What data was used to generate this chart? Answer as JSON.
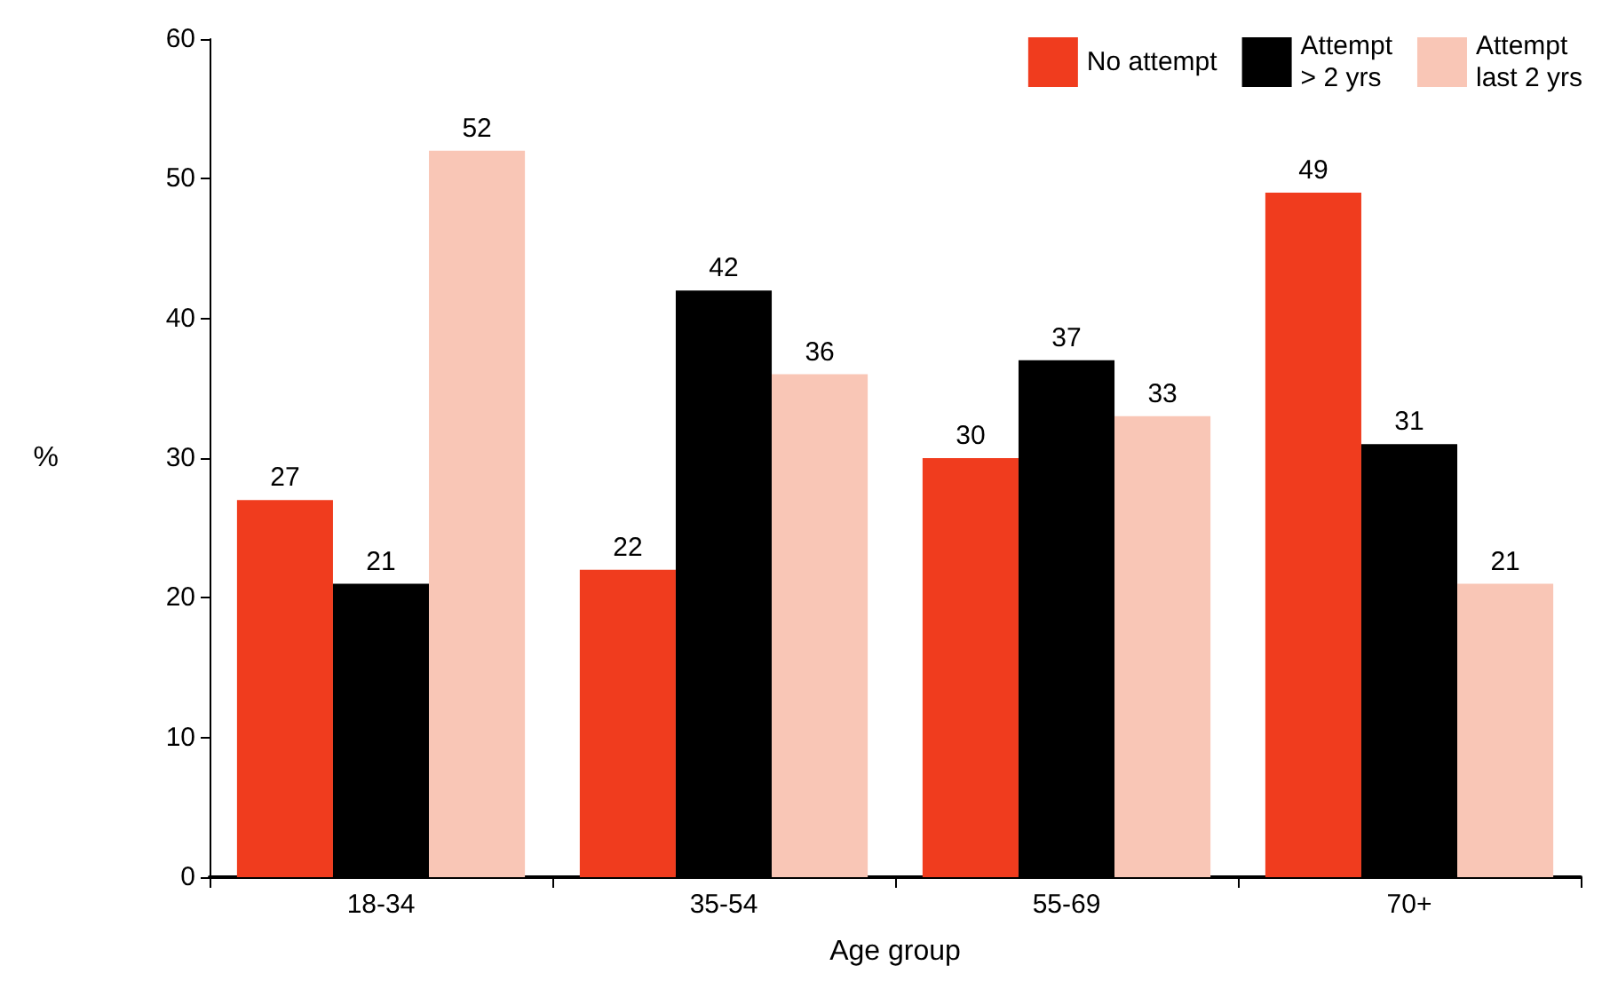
{
  "chart_data": {
    "type": "bar",
    "xlabel": "Age group",
    "ylabel": "%",
    "categories": [
      "18-34",
      "35-54",
      "55-69",
      "70+"
    ],
    "series": [
      {
        "name": "No attempt",
        "color": "#f03c1e",
        "values": [
          27,
          22,
          30,
          49
        ]
      },
      {
        "name": "Attempt\n> 2 yrs",
        "color": "#000000",
        "values": [
          21,
          42,
          37,
          31
        ]
      },
      {
        "name": "Attempt\nlast 2 yrs",
        "color": "#f9c6b6",
        "values": [
          52,
          36,
          33,
          21
        ]
      }
    ],
    "ylim": [
      0,
      60
    ],
    "yticks": [
      0,
      10,
      20,
      30,
      40,
      50,
      60
    ],
    "grid": false,
    "legend": "top right",
    "data_labels": true
  }
}
